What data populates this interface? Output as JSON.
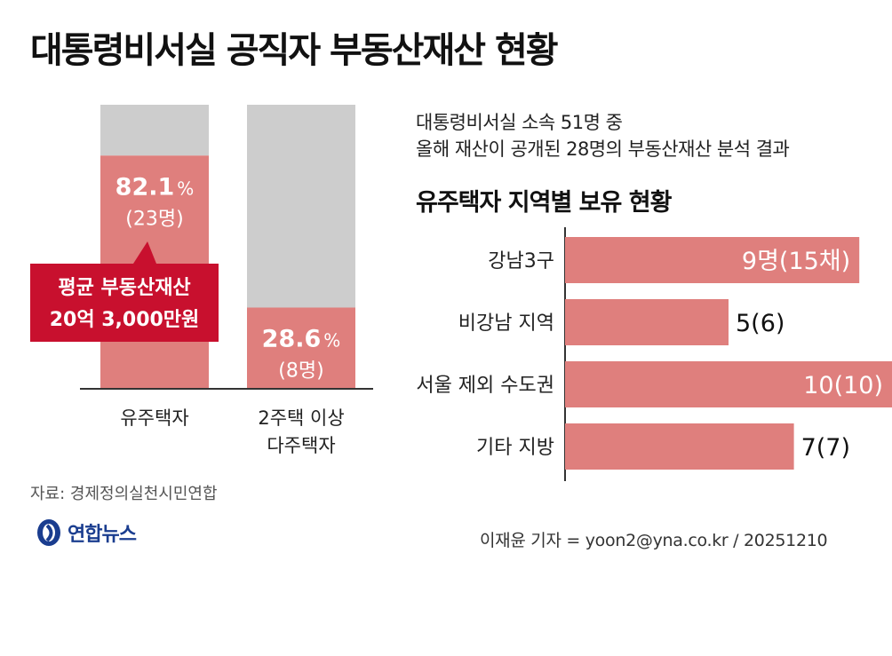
{
  "title": "대통령비서실 공직자 부동산재산 현황",
  "description_lines": [
    "대통령비서실 소속 51명 중",
    "올해 재산이 공개된 28명의 부동산재산 분석 결과"
  ],
  "right_title": "유주택자 지역별 보유 현황",
  "source": "자료: 경제정의실천시민연합",
  "logo_text": "연합뉴스",
  "credit": "이재윤 기자 = yoon2@yna.co.kr / 20251210",
  "colors": {
    "pink": "#df7f7d",
    "gray": "#cdcdcd",
    "red_callout": "#c8102e",
    "text": "#111111",
    "logo": "#1a3d8f"
  },
  "chart_data": [
    {
      "type": "bar",
      "stacked": true,
      "categories": [
        "유주택자",
        "2주택 이상 다주택자"
      ],
      "category_lines": [
        [
          "유주택자"
        ],
        [
          "2주택 이상",
          "다주택자"
        ]
      ],
      "values": [
        82.1,
        28.6
      ],
      "value_labels": [
        "82.1",
        "28.6"
      ],
      "unit": "%",
      "count_labels": [
        "(23명)",
        "(8명)"
      ],
      "ylim": [
        0,
        100
      ],
      "callout": [
        "평균 부동산재산",
        "20억 3,000만원"
      ]
    },
    {
      "type": "bar",
      "orientation": "horizontal",
      "categories": [
        "강남3구",
        "비강남 지역",
        "서울 제외 수도권",
        "기타 지방"
      ],
      "values": [
        9,
        5,
        10,
        7
      ],
      "secondary_values": [
        15,
        6,
        10,
        7
      ],
      "labels": [
        "9명(15채)",
        "5(6)",
        "10(10)",
        "7(7)"
      ],
      "xlim": [
        0,
        10
      ]
    }
  ]
}
